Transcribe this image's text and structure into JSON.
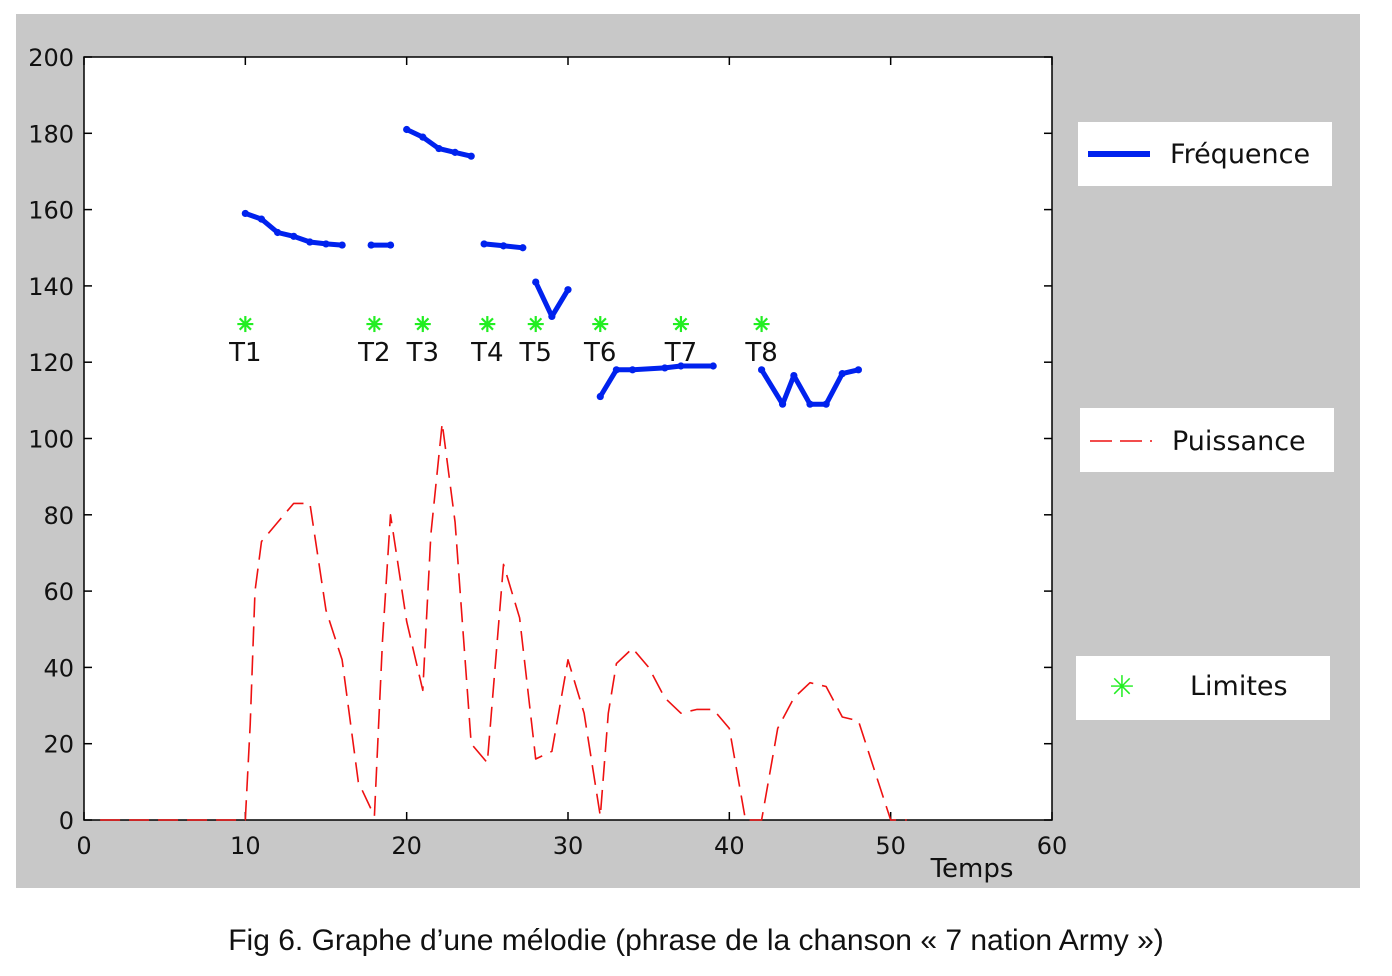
{
  "caption": "Fig 6. Graphe d’une mélodie (phrase de la chanson « 7 nation Army »)",
  "chart_data": {
    "type": "line",
    "title": "",
    "xlabel": "Temps",
    "ylabel": "",
    "xlim": [
      0,
      60
    ],
    "ylim": [
      0,
      200
    ],
    "xticks": [
      0,
      10,
      20,
      30,
      40,
      50,
      60
    ],
    "yticks": [
      0,
      20,
      40,
      60,
      80,
      100,
      120,
      140,
      160,
      180,
      200
    ],
    "grid": false,
    "legend_position": "right",
    "series": [
      {
        "name": "Fréquence",
        "color": "#0022ee",
        "style": "solid-thick",
        "segments": [
          [
            [
              10,
              159
            ],
            [
              11,
              157.5
            ],
            [
              12,
              154
            ],
            [
              13,
              153
            ],
            [
              14,
              151.5
            ],
            [
              15,
              151
            ],
            [
              16,
              150.7
            ]
          ],
          [
            [
              17.8,
              150.7
            ],
            [
              19,
              150.7
            ]
          ],
          [
            [
              20,
              181
            ],
            [
              21,
              179
            ],
            [
              22,
              176
            ],
            [
              23,
              175
            ],
            [
              24,
              174
            ]
          ],
          [
            [
              24.8,
              151
            ],
            [
              26,
              150.5
            ],
            [
              27.2,
              150
            ]
          ],
          [
            [
              28,
              141
            ],
            [
              29,
              132
            ],
            [
              30,
              139
            ]
          ],
          [
            [
              32,
              111
            ],
            [
              33,
              118
            ],
            [
              34,
              118
            ],
            [
              36,
              118.5
            ],
            [
              37,
              119
            ],
            [
              39,
              119
            ]
          ],
          [
            [
              42,
              118
            ],
            [
              43.3,
              109
            ],
            [
              44,
              116.5
            ],
            [
              45,
              109
            ],
            [
              46,
              109
            ],
            [
              47,
              117
            ],
            [
              48,
              118
            ]
          ]
        ]
      },
      {
        "name": "Puissance",
        "color": "#ee1111",
        "style": "dashed",
        "points": [
          [
            1,
            0
          ],
          [
            2,
            0
          ],
          [
            3,
            0
          ],
          [
            4,
            0
          ],
          [
            5,
            0
          ],
          [
            6,
            0
          ],
          [
            7,
            0
          ],
          [
            8,
            0
          ],
          [
            9,
            0
          ],
          [
            10,
            0
          ],
          [
            10.3,
            25
          ],
          [
            10.6,
            60
          ],
          [
            11,
            73
          ],
          [
            12,
            78
          ],
          [
            13,
            83
          ],
          [
            14,
            83
          ],
          [
            15,
            55
          ],
          [
            16,
            42
          ],
          [
            17,
            10
          ],
          [
            18,
            1
          ],
          [
            18.5,
            47
          ],
          [
            19,
            80
          ],
          [
            20,
            52
          ],
          [
            21,
            34
          ],
          [
            21.5,
            75
          ],
          [
            22.2,
            104
          ],
          [
            23,
            78
          ],
          [
            24,
            20
          ],
          [
            25,
            15
          ],
          [
            26,
            67
          ],
          [
            27,
            53
          ],
          [
            28,
            16
          ],
          [
            29,
            18
          ],
          [
            30,
            42
          ],
          [
            31,
            28
          ],
          [
            32,
            1
          ],
          [
            32.5,
            28
          ],
          [
            33,
            41
          ],
          [
            34,
            45
          ],
          [
            35,
            40
          ],
          [
            36,
            32
          ],
          [
            37,
            28
          ],
          [
            38,
            29
          ],
          [
            39,
            29
          ],
          [
            40,
            24
          ],
          [
            41,
            0
          ],
          [
            42,
            0
          ],
          [
            43,
            24
          ],
          [
            44,
            32
          ],
          [
            45,
            36
          ],
          [
            46,
            35
          ],
          [
            47,
            27
          ],
          [
            48,
            26
          ],
          [
            49,
            13
          ],
          [
            50,
            0
          ],
          [
            51,
            0
          ]
        ]
      },
      {
        "name": "Limites",
        "color": "#22ee22",
        "style": "markers-star",
        "points": [
          [
            10,
            130
          ],
          [
            18,
            130
          ],
          [
            21,
            130
          ],
          [
            25,
            130
          ],
          [
            28,
            130
          ],
          [
            32,
            130
          ],
          [
            37,
            130
          ],
          [
            42,
            130
          ]
        ]
      }
    ],
    "annotations": [
      {
        "text": "T1",
        "x": 10,
        "y": 130
      },
      {
        "text": "T2",
        "x": 18,
        "y": 130
      },
      {
        "text": "T3",
        "x": 21,
        "y": 130
      },
      {
        "text": "T4",
        "x": 25,
        "y": 130
      },
      {
        "text": "T5",
        "x": 28,
        "y": 130
      },
      {
        "text": "T6",
        "x": 32,
        "y": 130
      },
      {
        "text": "T7",
        "x": 37,
        "y": 130
      },
      {
        "text": "T8",
        "x": 42,
        "y": 130
      }
    ]
  }
}
